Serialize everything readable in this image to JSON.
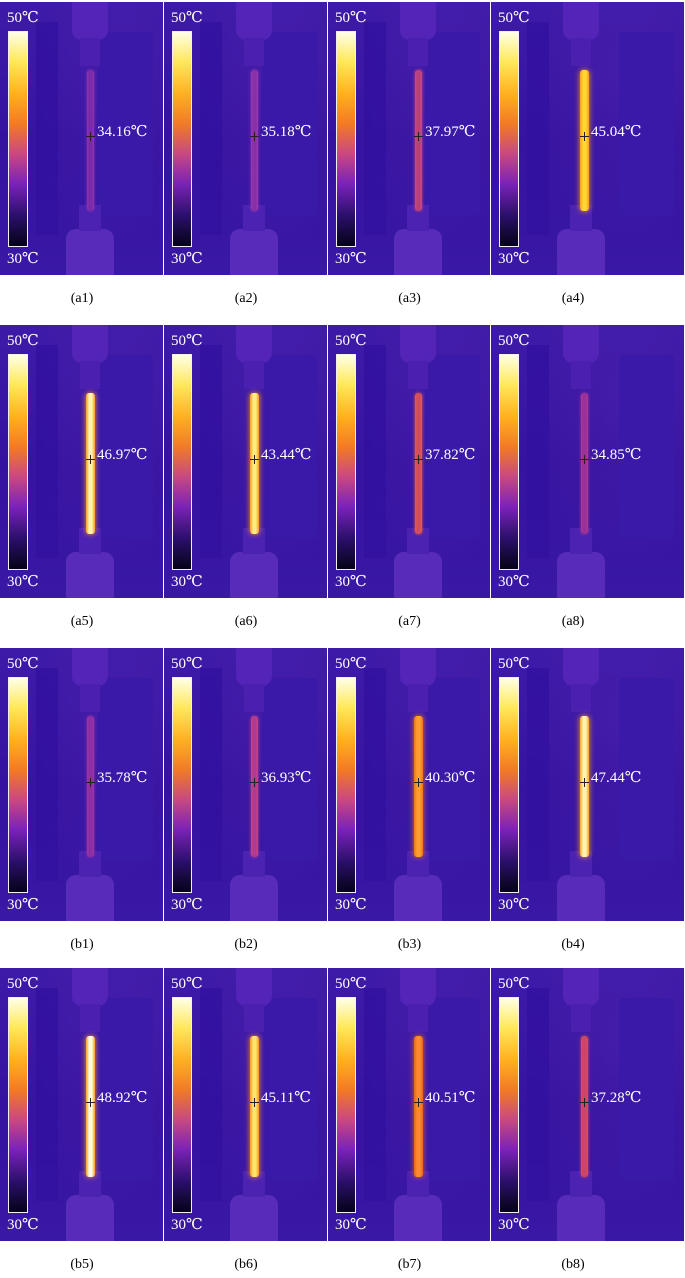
{
  "figure": {
    "scale_max_label": "50℃",
    "scale_min_label": "30℃",
    "scale_gradient": [
      "#050316",
      "#2a0f6a",
      "#7a22b8",
      "#c84882",
      "#f27a26",
      "#ffb020",
      "#ffe85a",
      "#ffffe8"
    ],
    "rows": [
      {
        "panels": [
          {
            "caption": "(a1)",
            "temperature": "34.16℃",
            "strip_color": "#7a2aa8",
            "strip_glow": "#8a35b0"
          },
          {
            "caption": "(a2)",
            "temperature": "35.18℃",
            "strip_color": "#8630a8",
            "strip_glow": "#9838b0"
          },
          {
            "caption": "(a3)",
            "temperature": "37.97℃",
            "strip_color": "#b84080",
            "strip_glow": "#c84a7a"
          },
          {
            "caption": "(a4)",
            "temperature": "45.04℃",
            "strip_color": "#ffd830",
            "strip_glow": "#ff9a28"
          }
        ]
      },
      {
        "panels": [
          {
            "caption": "(a5)",
            "temperature": "46.97℃",
            "strip_color": "#fff4b0",
            "strip_glow": "#ff9628"
          },
          {
            "caption": "(a6)",
            "temperature": "43.44℃",
            "strip_color": "#ffec80",
            "strip_glow": "#ff9428"
          },
          {
            "caption": "(a7)",
            "temperature": "37.82℃",
            "strip_color": "#d04a6a",
            "strip_glow": "#e0603a"
          },
          {
            "caption": "(a8)",
            "temperature": "34.85℃",
            "strip_color": "#9a3098",
            "strip_glow": "#aa3a92"
          }
        ]
      },
      {
        "panels": [
          {
            "caption": "(b1)",
            "temperature": "35.78℃",
            "strip_color": "#8e2ea6",
            "strip_glow": "#9a36a4"
          },
          {
            "caption": "(b2)",
            "temperature": "36.93℃",
            "strip_color": "#b03a8e",
            "strip_glow": "#c04486"
          },
          {
            "caption": "(b3)",
            "temperature": "40.30℃",
            "strip_color": "#ffa028",
            "strip_glow": "#f07026"
          },
          {
            "caption": "(b4)",
            "temperature": "47.44℃",
            "strip_color": "#fff4b0",
            "strip_glow": "#ffa028"
          }
        ]
      },
      {
        "panels": [
          {
            "caption": "(b5)",
            "temperature": "48.92℃",
            "strip_color": "#fffce0",
            "strip_glow": "#ff9a28"
          },
          {
            "caption": "(b6)",
            "temperature": "45.11℃",
            "strip_color": "#ffe470",
            "strip_glow": "#ff9028"
          },
          {
            "caption": "(b7)",
            "temperature": "40.51℃",
            "strip_color": "#ff8c28",
            "strip_glow": "#e8602a"
          },
          {
            "caption": "(b8)",
            "temperature": "37.28℃",
            "strip_color": "#c8466e",
            "strip_glow": "#d8523e"
          }
        ]
      }
    ]
  }
}
